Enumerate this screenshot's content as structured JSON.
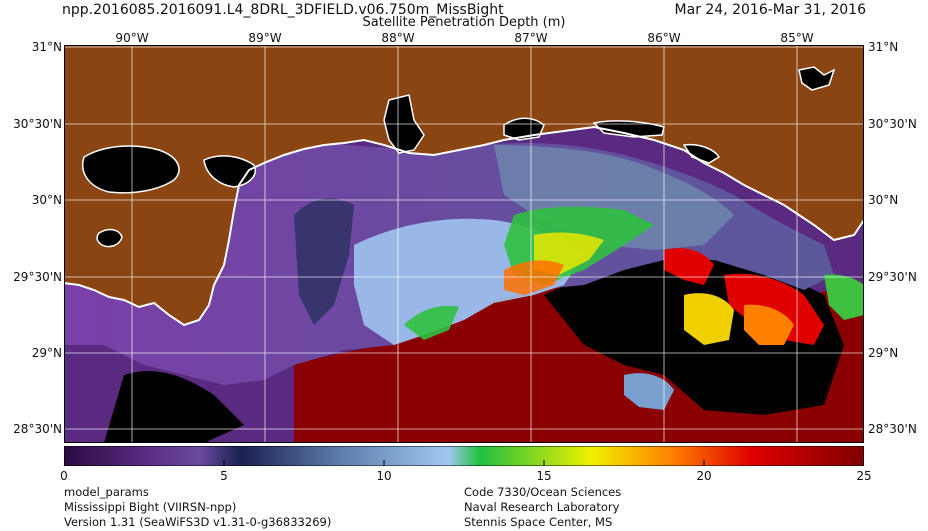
{
  "header": {
    "title_left": "npp.2016085.2016091.L4_8DRL_3DFIELD.v06.750m_MissBight",
    "title_right": "Mar 24, 2016-Mar 31, 2016",
    "subtitle": "Satellite Penetration Depth (m)"
  },
  "map": {
    "lon_labels": [
      "90°W",
      "89°W",
      "88°W",
      "87°W",
      "86°W",
      "85°W"
    ],
    "lat_labels": [
      "31°N",
      "30°30'N",
      "30°N",
      "29°30'N",
      "29°N",
      "28°30'N"
    ],
    "colors": {
      "land": "#8b4513",
      "no_data": "#000000",
      "coastline": "#ffffff",
      "gridline": "#ffffff"
    }
  },
  "colorbar": {
    "ticks": [
      "0",
      "5",
      "10",
      "15",
      "20",
      "25"
    ],
    "min": 0,
    "max": 25,
    "stops": [
      "#2a0a40",
      "#5a2a80",
      "#6a4aa0",
      "#1a2050",
      "#6080b0",
      "#a0c8f0",
      "#20c040",
      "#f0f000",
      "#ff8000",
      "#e00000",
      "#800000"
    ]
  },
  "footer": {
    "left_lines": [
      "model_params",
      "Mississippi Bight (VIIRSN-npp)",
      "Version 1.31 (SeaWiFS3D v1.31-0-g36833269)"
    ],
    "right_lines": [
      "Code 7330/Ocean Sciences",
      "Naval Research Laboratory",
      "Stennis Space Center, MS"
    ]
  }
}
